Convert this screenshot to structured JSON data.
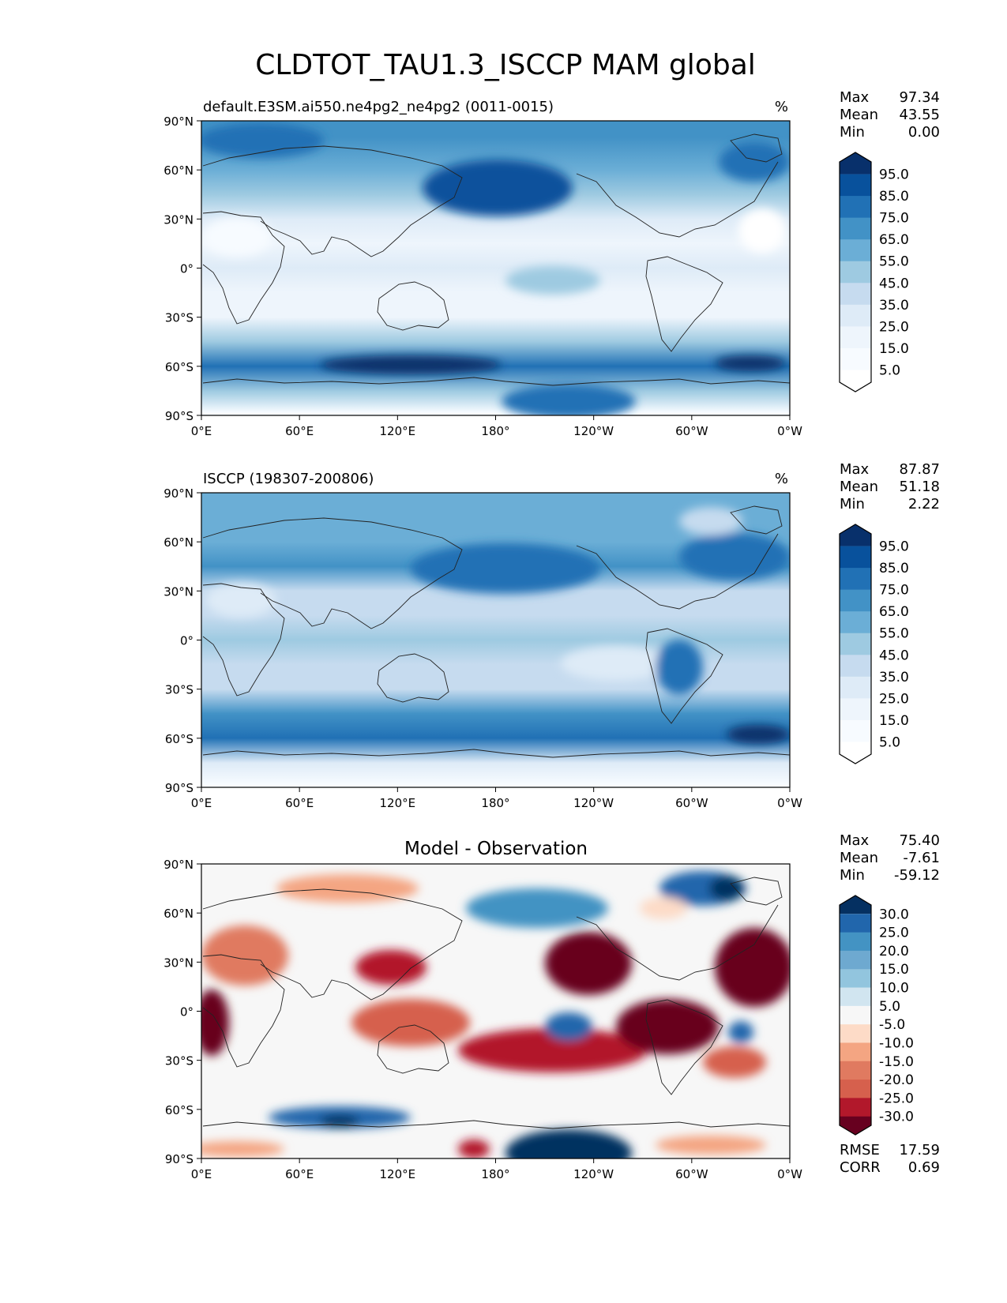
{
  "title": "CLDTOT_TAU1.3_ISCCP MAM global",
  "chart_data": [
    {
      "type": "heatmap",
      "panel": "test",
      "title": "default.E3SM.ai550.ne4pg2_ne4pg2 (0011-0015)",
      "units": "%",
      "stats": [
        {
          "label": "Max",
          "value": "97.34"
        },
        {
          "label": "Mean",
          "value": "43.55"
        },
        {
          "label": "Min",
          "value": "0.00"
        }
      ],
      "colorbar": {
        "levels": [
          "95.0",
          "85.0",
          "75.0",
          "65.0",
          "55.0",
          "45.0",
          "35.0",
          "25.0",
          "15.0",
          "5.0"
        ],
        "colors": [
          "#08306b",
          "#08519c",
          "#2171b5",
          "#4292c6",
          "#6baed6",
          "#9ecae1",
          "#c6dbef",
          "#deebf7",
          "#eef5fc",
          "#f7fbff",
          "#ffffff"
        ]
      },
      "xticks": [
        "0°E",
        "60°E",
        "120°E",
        "180°",
        "120°W",
        "60°W",
        "0°W"
      ],
      "yticks": [
        "90°N",
        "60°N",
        "30°N",
        "0°",
        "30°S",
        "60°S",
        "90°S"
      ],
      "zonal_profile": [
        {
          "lat": 80,
          "value": 72
        },
        {
          "lat": 60,
          "value": 60
        },
        {
          "lat": 45,
          "value": 48
        },
        {
          "lat": 30,
          "value": 30
        },
        {
          "lat": 15,
          "value": 25
        },
        {
          "lat": 0,
          "value": 28
        },
        {
          "lat": -15,
          "value": 22
        },
        {
          "lat": -30,
          "value": 25
        },
        {
          "lat": -45,
          "value": 55
        },
        {
          "lat": -60,
          "value": 80
        },
        {
          "lat": -75,
          "value": 50
        },
        {
          "lat": -88,
          "value": 8
        }
      ]
    },
    {
      "type": "heatmap",
      "panel": "reference",
      "title": "ISCCP (198307-200806)",
      "units": "%",
      "stats": [
        {
          "label": "Max",
          "value": "87.87"
        },
        {
          "label": "Mean",
          "value": "51.18"
        },
        {
          "label": "Min",
          "value": "2.22"
        }
      ],
      "colorbar": {
        "levels": [
          "95.0",
          "85.0",
          "75.0",
          "65.0",
          "55.0",
          "45.0",
          "35.0",
          "25.0",
          "15.0",
          "5.0"
        ],
        "colors": [
          "#08306b",
          "#08519c",
          "#2171b5",
          "#4292c6",
          "#6baed6",
          "#9ecae1",
          "#c6dbef",
          "#deebf7",
          "#eef5fc",
          "#f7fbff",
          "#ffffff"
        ]
      },
      "xticks": [
        "0°E",
        "60°E",
        "120°E",
        "180°",
        "120°W",
        "60°W",
        "0°W"
      ],
      "yticks": [
        "90°N",
        "60°N",
        "30°N",
        "0°",
        "30°S",
        "60°S",
        "90°S"
      ],
      "zonal_profile": [
        {
          "lat": 80,
          "value": 65
        },
        {
          "lat": 60,
          "value": 62
        },
        {
          "lat": 45,
          "value": 70
        },
        {
          "lat": 30,
          "value": 45
        },
        {
          "lat": 15,
          "value": 40
        },
        {
          "lat": 0,
          "value": 52
        },
        {
          "lat": -15,
          "value": 42
        },
        {
          "lat": -30,
          "value": 45
        },
        {
          "lat": -45,
          "value": 70
        },
        {
          "lat": -60,
          "value": 82
        },
        {
          "lat": -75,
          "value": 30
        },
        {
          "lat": -88,
          "value": 12
        }
      ]
    },
    {
      "type": "heatmap",
      "panel": "difference",
      "title": "Model - Observation",
      "units": "",
      "stats": [
        {
          "label": "Max",
          "value": "75.40"
        },
        {
          "label": "Mean",
          "value": "-7.61"
        },
        {
          "label": "Min",
          "value": "-59.12"
        }
      ],
      "colorbar": {
        "levels": [
          "30.0",
          "25.0",
          "20.0",
          "15.0",
          "10.0",
          "5.0",
          "-5.0",
          "-10.0",
          "-15.0",
          "-20.0",
          "-25.0",
          "-30.0"
        ],
        "colors": [
          "#053061",
          "#2166ac",
          "#4393c3",
          "#6ea9d0",
          "#92c5de",
          "#d1e5f0",
          "#f7f7f7",
          "#fddbc7",
          "#f4a582",
          "#e07a60",
          "#d6604d",
          "#b2182b",
          "#67001f"
        ]
      },
      "xticks": [
        "0°E",
        "60°E",
        "120°E",
        "180°",
        "120°W",
        "60°W",
        "0°W"
      ],
      "yticks": [
        "90°N",
        "60°N",
        "30°N",
        "0°",
        "30°S",
        "60°S",
        "90°S"
      ],
      "metrics": [
        {
          "label": "RMSE",
          "value": "17.59"
        },
        {
          "label": "CORR",
          "value": "0.69"
        }
      ]
    }
  ]
}
